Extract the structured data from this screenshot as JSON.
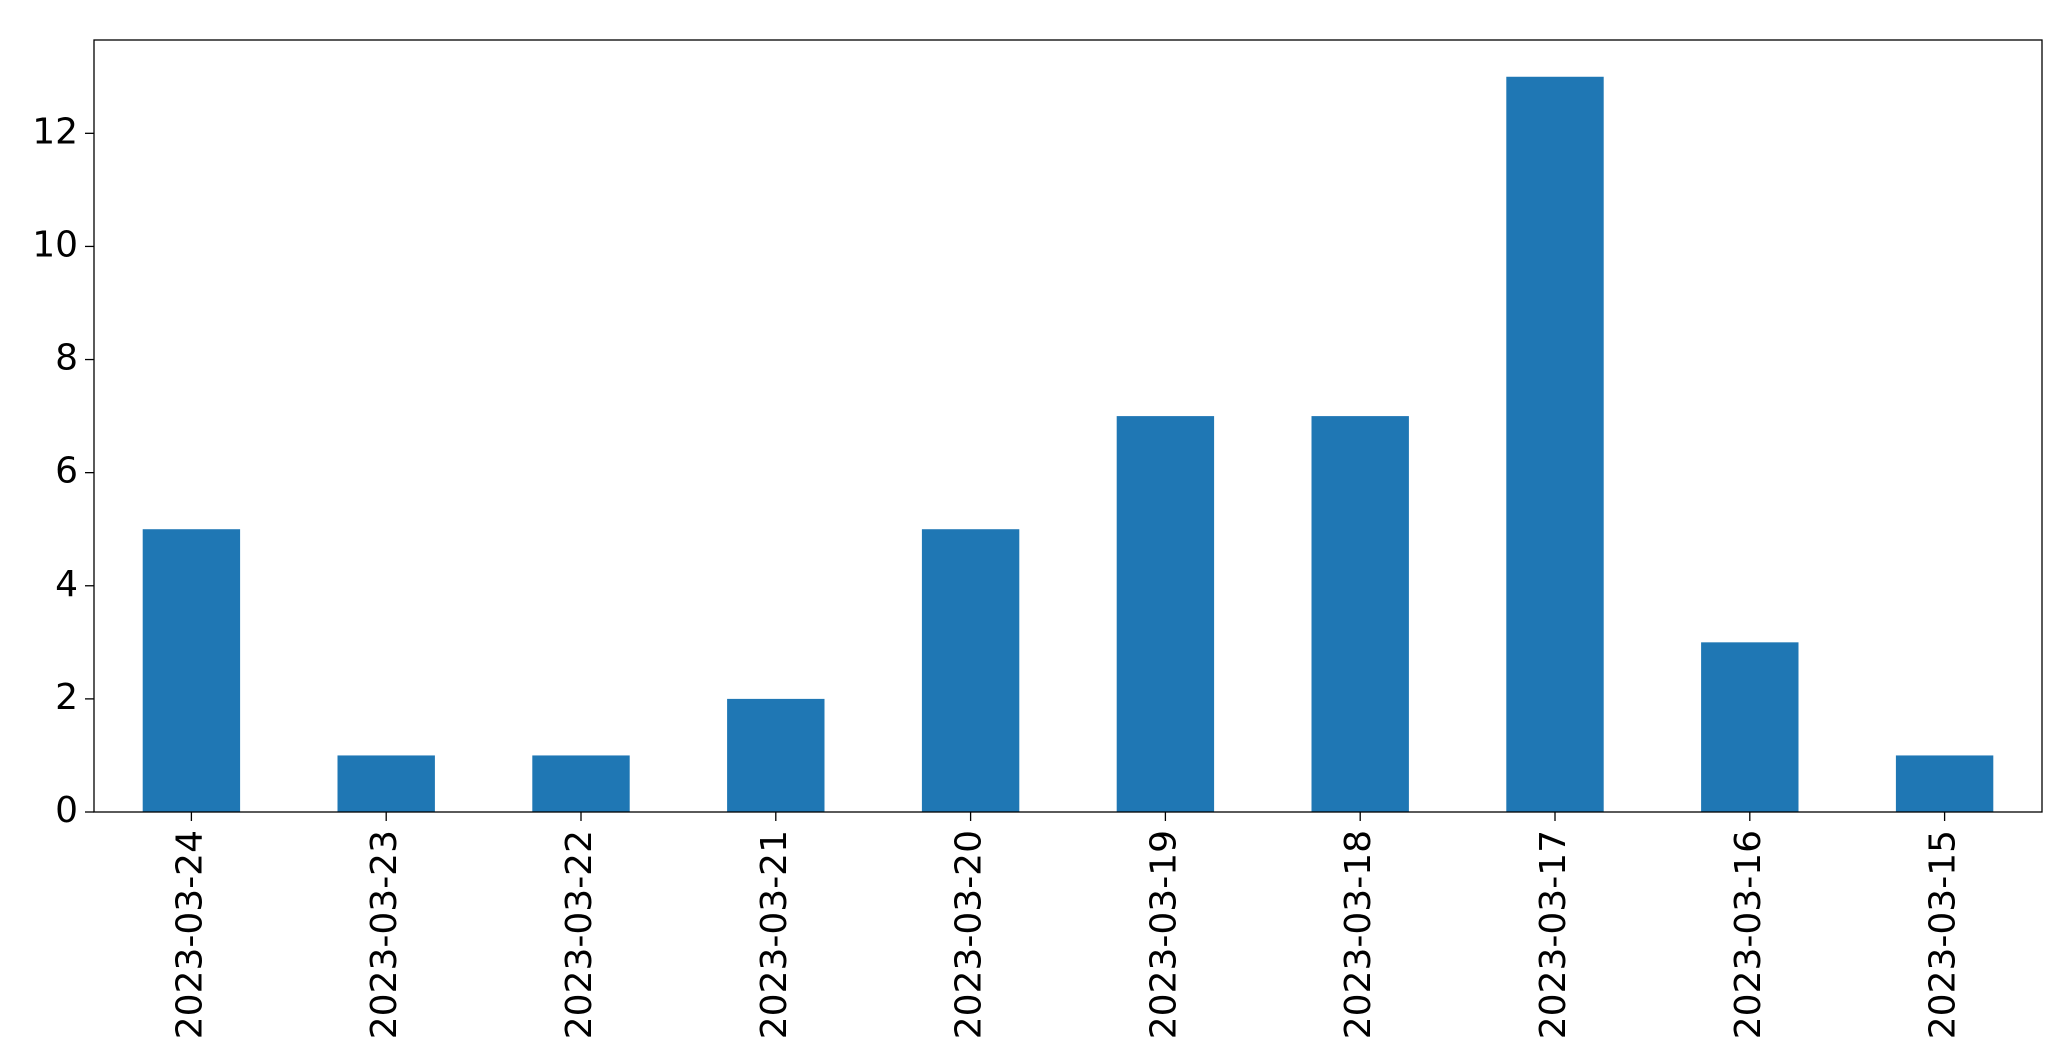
{
  "chart_data": {
    "type": "bar",
    "categories": [
      "2023-03-24",
      "2023-03-23",
      "2023-03-22",
      "2023-03-21",
      "2023-03-20",
      "2023-03-19",
      "2023-03-18",
      "2023-03-17",
      "2023-03-16",
      "2023-03-15"
    ],
    "values": [
      5,
      1,
      1,
      2,
      5,
      7,
      7,
      13,
      3,
      1
    ],
    "color": "#1f77b4",
    "ylim": [
      0,
      13.65
    ],
    "yticks": [
      0,
      2,
      4,
      6,
      8,
      10,
      12
    ],
    "grid": false
  }
}
